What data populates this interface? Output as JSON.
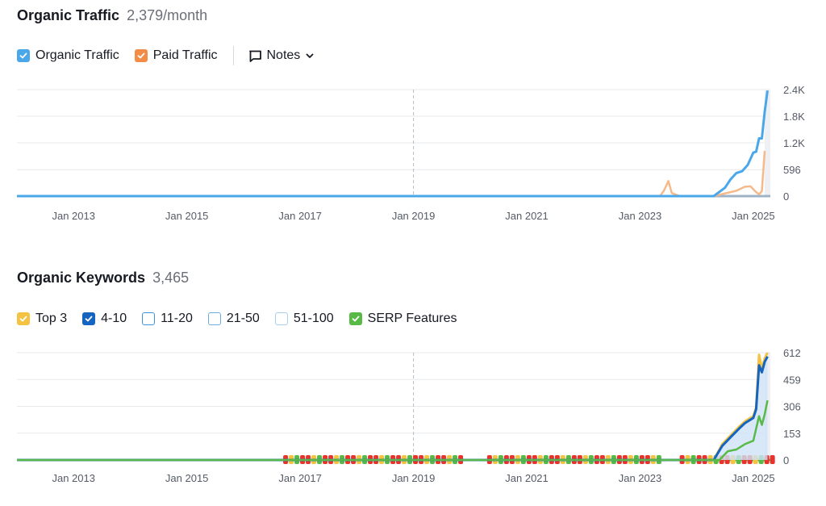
{
  "traffic": {
    "title": "Organic Traffic",
    "value": "2,379/month",
    "legend": [
      {
        "label": "Organic Traffic",
        "color": "#4aa8ea",
        "checked": true,
        "icon": "check-icon"
      },
      {
        "label": "Paid Traffic",
        "color": "#f28c47",
        "checked": true,
        "icon": "check-icon"
      }
    ],
    "notes_label": "Notes",
    "notes_icon": "comment-icon",
    "notes_chevron_icon": "chevron-down-icon"
  },
  "keywords": {
    "title": "Organic Keywords",
    "value": "3,465",
    "legend": [
      {
        "label": "Top 3",
        "color": "#f5c342",
        "checked": true
      },
      {
        "label": "4-10",
        "color": "#1565c0",
        "checked": true
      },
      {
        "label": "11-20",
        "color": "#3f93d6",
        "checked": false
      },
      {
        "label": "21-50",
        "color": "#6aaee0",
        "checked": false
      },
      {
        "label": "51-100",
        "color": "#a8cff0",
        "checked": false
      },
      {
        "label": "SERP Features",
        "color": "#58b947",
        "checked": true
      }
    ]
  },
  "chart_data": [
    {
      "type": "line",
      "ylim": [
        0,
        2400
      ],
      "yticks": [
        "2.4K",
        "1.8K",
        "1.2K",
        "596",
        "0"
      ],
      "ytick_values": [
        2400,
        1800,
        1200,
        596,
        0
      ],
      "xlabels": [
        "Jan 2013",
        "Jan 2015",
        "Jan 2017",
        "Jan 2019",
        "Jan 2021",
        "Jan 2023",
        "Jan 2025"
      ],
      "xlabel_years": [
        2013,
        2015,
        2017,
        2019,
        2021,
        2023,
        2025
      ],
      "xlim": [
        2012.0,
        2025.3
      ],
      "grid": true,
      "marker_year": 2019,
      "series": [
        {
          "name": "Organic Traffic",
          "color": "#4aa8ea",
          "x": [
            2012.0,
            2024.3,
            2024.5,
            2024.6,
            2024.7,
            2024.8,
            2024.9,
            2025.0,
            2025.05,
            2025.1,
            2025.15,
            2025.2,
            2025.25
          ],
          "y": [
            0,
            0,
            190,
            380,
            520,
            560,
            700,
            980,
            1000,
            1300,
            1300,
            1900,
            2379
          ]
        },
        {
          "name": "Paid Traffic",
          "color": "#f5b98a",
          "x": [
            2012.0,
            2023.35,
            2023.42,
            2023.5,
            2023.56,
            2023.7,
            2024.3,
            2024.7,
            2024.85,
            2024.95,
            2025.05,
            2025.1,
            2025.15,
            2025.2
          ],
          "y": [
            0,
            0,
            120,
            340,
            70,
            0,
            0,
            120,
            210,
            220,
            90,
            40,
            110,
            1020
          ]
        }
      ]
    },
    {
      "type": "area",
      "ylim": [
        0,
        612
      ],
      "yticks": [
        "612",
        "459",
        "306",
        "153",
        "0"
      ],
      "ytick_values": [
        612,
        459,
        306,
        153,
        0
      ],
      "xlabels": [
        "Jan 2013",
        "Jan 2015",
        "Jan 2017",
        "Jan 2019",
        "Jan 2021",
        "Jan 2023",
        "Jan 2025"
      ],
      "xlabel_years": [
        2013,
        2015,
        2017,
        2019,
        2021,
        2023,
        2025
      ],
      "xlim": [
        2012.0,
        2025.3
      ],
      "grid": true,
      "marker_year": 2019,
      "series": [
        {
          "name": "Top 3",
          "color": "#f5c342",
          "x": [
            2012.0,
            2024.3,
            2024.45,
            2024.6,
            2024.75,
            2024.85,
            2025.0,
            2025.05,
            2025.1,
            2025.15,
            2025.2,
            2025.25
          ],
          "y": [
            0,
            0,
            90,
            140,
            190,
            220,
            250,
            300,
            600,
            520,
            580,
            612
          ]
        },
        {
          "name": "4-10",
          "color": "#1565c0",
          "x": [
            2012.0,
            2024.3,
            2024.45,
            2024.6,
            2024.75,
            2024.85,
            2025.0,
            2025.05,
            2025.1,
            2025.15,
            2025.2,
            2025.25
          ],
          "y": [
            0,
            0,
            80,
            130,
            180,
            210,
            240,
            290,
            540,
            500,
            560,
            590
          ]
        },
        {
          "name": "SERP Features",
          "color": "#58b947",
          "x": [
            2012.0,
            2024.4,
            2024.55,
            2024.7,
            2024.85,
            2025.0,
            2025.1,
            2025.15,
            2025.2,
            2025.25
          ],
          "y": [
            0,
            0,
            50,
            60,
            90,
            110,
            250,
            200,
            260,
            340
          ]
        }
      ],
      "event_bands": [
        {
          "from": 2016.7,
          "to": 2019.8,
          "colors": [
            "#e8322b",
            "#f5c342",
            "#58b947",
            "#e8322b"
          ]
        },
        {
          "from": 2020.3,
          "to": 2023.3,
          "colors": [
            "#e8322b",
            "#f5c342",
            "#58b947",
            "#e8322b"
          ]
        },
        {
          "from": 2023.7,
          "to": 2025.3,
          "colors": [
            "#e8322b",
            "#f5c342",
            "#58b947",
            "#e8322b"
          ]
        }
      ]
    }
  ]
}
